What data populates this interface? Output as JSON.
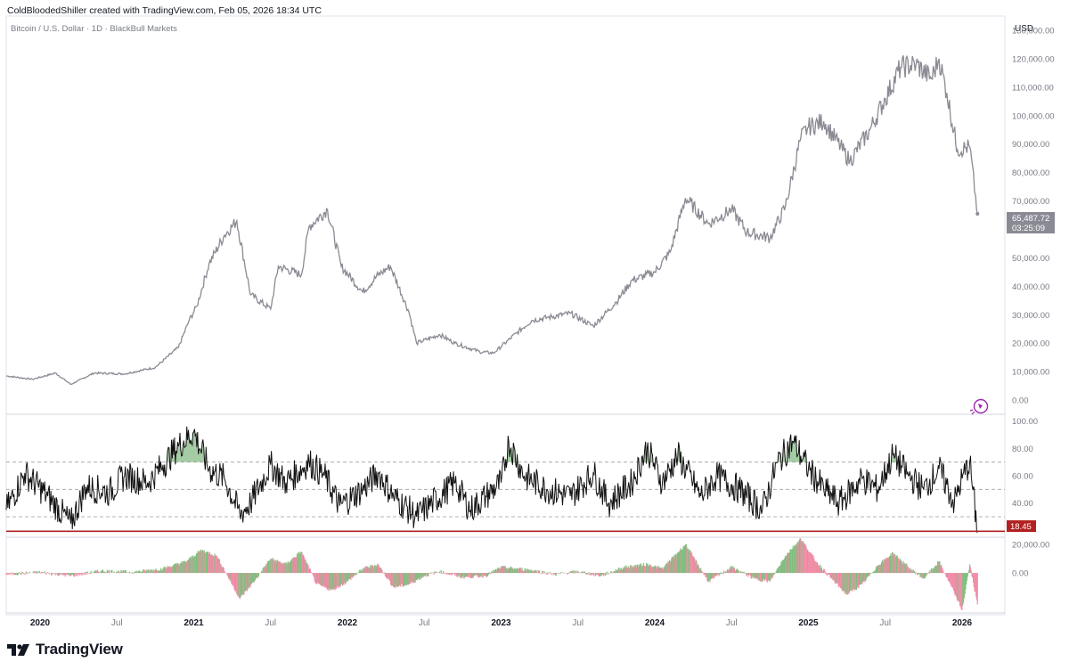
{
  "header": {
    "attribution": "ColdBloodedShiller created with TradingView.com, Feb 05, 2026 18:34 UTC",
    "symbol": "Bitcoin / U.S. Dollar · 1D · BlackBull Markets",
    "currency": "USD"
  },
  "footer": {
    "brand": "TradingView",
    "logo_icon": "tradingview-logo-icon"
  },
  "colors": {
    "price_line": "#8a8a94",
    "rsi_line": "#111111",
    "rsi_fill_overbought": "#8fbf8f",
    "baseline_red": "#b22222",
    "hist_positive": "#7fc07f",
    "hist_negative": "#f08fa8",
    "dashed": "#9e9e9e",
    "purple_icon": "#9c27b0"
  },
  "chart_data": [
    {
      "type": "line",
      "title": "Bitcoin / U.S. Dollar · 1D · BlackBull Markets",
      "ylabel": "USD",
      "ylim": [
        -5000,
        135000
      ],
      "yticks": [
        0,
        10000,
        20000,
        30000,
        40000,
        50000,
        60000,
        70000,
        80000,
        90000,
        100000,
        110000,
        120000,
        130000
      ],
      "ytick_labels": [
        "0.00",
        "10,000.00",
        "20,000.00",
        "30,000.00",
        "40,000.00",
        "50,000.00",
        "60,000.00",
        "70,000.00",
        "80,000.00",
        "90,000.00",
        "100,000.00",
        "110,000.00",
        "120,000.00",
        "130,000.00"
      ],
      "x": [
        2019.78,
        2019.95,
        2020.1,
        2020.2,
        2020.35,
        2020.55,
        2020.75,
        2020.9,
        2020.97,
        2021.02,
        2021.1,
        2021.2,
        2021.28,
        2021.37,
        2021.5,
        2021.55,
        2021.7,
        2021.75,
        2021.87,
        2021.96,
        2022.1,
        2022.2,
        2022.28,
        2022.4,
        2022.45,
        2022.6,
        2022.7,
        2022.86,
        2022.95,
        2023.1,
        2023.2,
        2023.3,
        2023.45,
        2023.6,
        2023.75,
        2023.85,
        2024.0,
        2024.1,
        2024.2,
        2024.35,
        2024.5,
        2024.6,
        2024.75,
        2024.85,
        2024.95,
        2025.0,
        2025.1,
        2025.27,
        2025.4,
        2025.5,
        2025.6,
        2025.7,
        2025.8,
        2025.85,
        2025.9,
        2025.97,
        2026.05,
        2026.1
      ],
      "series": [
        {
          "name": "BTCUSD",
          "values": [
            8500,
            7300,
            9500,
            5500,
            9500,
            9200,
            11500,
            18500,
            28000,
            33000,
            48000,
            58000,
            63000,
            37000,
            32000,
            47000,
            44000,
            61000,
            67000,
            47000,
            38000,
            44000,
            47000,
            31000,
            20000,
            23000,
            20000,
            17000,
            16500,
            23500,
            28000,
            29000,
            30500,
            26000,
            34500,
            42000,
            45000,
            52000,
            71000,
            62000,
            67000,
            59000,
            57000,
            68000,
            92000,
            96000,
            98000,
            84000,
            95000,
            106000,
            117000,
            118000,
            113000,
            120000,
            108000,
            88000,
            89000,
            65487.72
          ]
        }
      ],
      "last_price_label": "65,487.72",
      "countdown_label": "03:25:09"
    },
    {
      "type": "line",
      "title": "RSI",
      "ylim": [
        15,
        105
      ],
      "yticks": [
        40,
        60,
        80,
        100
      ],
      "ytick_labels": [
        "40.00",
        "60.00",
        "80.00",
        "100.00"
      ],
      "bands": [
        30,
        50,
        70
      ],
      "x": [
        2019.78,
        2019.9,
        2020.05,
        2020.2,
        2020.3,
        2020.45,
        2020.55,
        2020.7,
        2020.8,
        2020.9,
        2021.0,
        2021.1,
        2021.2,
        2021.3,
        2021.37,
        2021.5,
        2021.6,
        2021.75,
        2021.85,
        2021.95,
        2022.1,
        2022.2,
        2022.3,
        2022.45,
        2022.55,
        2022.7,
        2022.8,
        2022.9,
        2023.0,
        2023.05,
        2023.15,
        2023.3,
        2023.45,
        2023.6,
        2023.7,
        2023.85,
        2023.95,
        2024.05,
        2024.15,
        2024.3,
        2024.4,
        2024.55,
        2024.7,
        2024.8,
        2024.9,
        2025.0,
        2025.1,
        2025.2,
        2025.35,
        2025.45,
        2025.55,
        2025.65,
        2025.75,
        2025.85,
        2025.95,
        2026.0,
        2026.05,
        2026.1
      ],
      "series": [
        {
          "name": "RSI",
          "values": [
            35,
            62,
            45,
            25,
            52,
            48,
            60,
            55,
            68,
            82,
            92,
            65,
            58,
            32,
            40,
            68,
            55,
            70,
            60,
            38,
            50,
            62,
            45,
            30,
            40,
            55,
            35,
            45,
            55,
            85,
            60,
            50,
            45,
            62,
            40,
            55,
            80,
            55,
            75,
            45,
            60,
            50,
            35,
            70,
            85,
            65,
            50,
            40,
            58,
            50,
            75,
            60,
            50,
            65,
            40,
            58,
            70,
            18.45
          ]
        }
      ],
      "last_value_label": "18.45",
      "baseline": 20
    },
    {
      "type": "bar",
      "title": "Momentum histogram",
      "ylim": [
        -28000,
        25000
      ],
      "yticks": [
        0,
        20000
      ],
      "ytick_labels": [
        "0.00",
        "20,000.00"
      ],
      "x": [
        2019.78,
        2020.0,
        2020.2,
        2020.4,
        2020.6,
        2020.8,
        2020.95,
        2021.05,
        2021.15,
        2021.3,
        2021.4,
        2021.5,
        2021.6,
        2021.7,
        2021.8,
        2021.9,
        2022.0,
        2022.1,
        2022.2,
        2022.3,
        2022.4,
        2022.5,
        2022.6,
        2022.75,
        2022.9,
        2023.0,
        2023.1,
        2023.2,
        2023.35,
        2023.5,
        2023.65,
        2023.8,
        2023.95,
        2024.05,
        2024.2,
        2024.35,
        2024.5,
        2024.65,
        2024.75,
        2024.85,
        2024.95,
        2025.05,
        2025.15,
        2025.25,
        2025.35,
        2025.45,
        2025.55,
        2025.65,
        2025.75,
        2025.85,
        2025.95,
        2026.0,
        2026.05,
        2026.1
      ],
      "series": [
        {
          "name": "Momentum",
          "values": [
            -1000,
            500,
            -2000,
            1500,
            500,
            3000,
            8000,
            16000,
            12000,
            -18000,
            -5000,
            10000,
            6000,
            15000,
            -8000,
            -12000,
            -6000,
            3000,
            6000,
            -10000,
            -8000,
            -2000,
            1000,
            -3000,
            -2000,
            4000,
            3000,
            2000,
            -1000,
            1000,
            -2000,
            4000,
            6000,
            3000,
            20000,
            -6000,
            4000,
            -4000,
            -6000,
            12000,
            24000,
            8000,
            -4000,
            -15000,
            -8000,
            5000,
            14000,
            4000,
            -4000,
            8000,
            -14000,
            -26000,
            6000,
            -22000
          ]
        }
      ]
    }
  ],
  "time_axis": {
    "ticks": [
      {
        "label": "2020",
        "t": 2020.0,
        "bold": true
      },
      {
        "label": "Jul",
        "t": 2020.5,
        "bold": false
      },
      {
        "label": "2021",
        "t": 2021.0,
        "bold": true
      },
      {
        "label": "Jul",
        "t": 2021.5,
        "bold": false
      },
      {
        "label": "2022",
        "t": 2022.0,
        "bold": true
      },
      {
        "label": "Jul",
        "t": 2022.5,
        "bold": false
      },
      {
        "label": "2023",
        "t": 2023.0,
        "bold": true
      },
      {
        "label": "Jul",
        "t": 2023.5,
        "bold": false
      },
      {
        "label": "2024",
        "t": 2024.0,
        "bold": true
      },
      {
        "label": "Jul",
        "t": 2024.5,
        "bold": false
      },
      {
        "label": "2025",
        "t": 2025.0,
        "bold": true
      },
      {
        "label": "Jul",
        "t": 2025.5,
        "bold": false
      },
      {
        "label": "2026",
        "t": 2026.0,
        "bold": true
      }
    ]
  }
}
